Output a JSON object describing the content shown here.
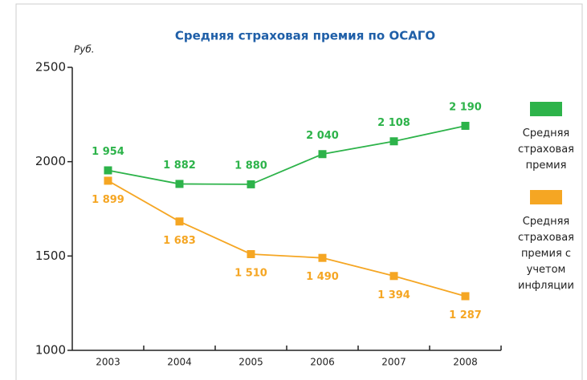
{
  "chart_data": {
    "type": "line",
    "title": "Средняя страховая премия по ОСАГО",
    "y_label": "Руб.",
    "categories": [
      "2003",
      "2004",
      "2005",
      "2006",
      "2007",
      "2008"
    ],
    "series": [
      {
        "name": "Средняя страховая премия",
        "color": "#2db34a",
        "values": [
          1954,
          1882,
          1880,
          2040,
          2108,
          2190
        ],
        "value_labels": [
          "1 954",
          "1 882",
          "1 880",
          "2 040",
          "2 108",
          "2 190"
        ]
      },
      {
        "name": "Средняя страховая премия с учетом инфляции",
        "color": "#f5a623",
        "values": [
          1899,
          1683,
          1510,
          1490,
          1394,
          1287
        ],
        "value_labels": [
          "1 899",
          "1 683",
          "1 510",
          "1 490",
          "1 394",
          "1 287"
        ]
      }
    ],
    "ylim": [
      1000,
      2500
    ],
    "yticks": [
      1000,
      1500,
      2000,
      2500
    ],
    "legend": "right"
  }
}
